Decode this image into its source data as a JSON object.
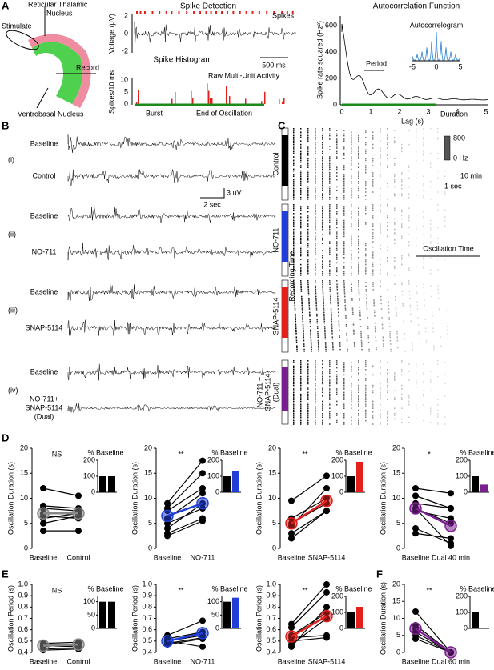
{
  "panel_labels": [
    "A",
    "B",
    "C",
    "D",
    "E",
    "F"
  ],
  "schematic": {
    "rtn": [
      "Reticular Thalamic",
      "Nucleus"
    ],
    "stimulate": "Stimulate",
    "record": "Record",
    "vb": "Ventrobasal Nucleus"
  },
  "spike_detection": {
    "title": "Spike Detection",
    "ylabel": "Voltage (μV)",
    "yticks": [
      "2",
      "0",
      "-2"
    ],
    "spikes": "Spikes",
    "raw": "Raw Multi-Unit Activity",
    "scale": "500 ms"
  },
  "histogram": {
    "title": "Spike Histogram",
    "ylabel": "Spikes/10 ms",
    "yticks": [
      "10",
      "5",
      "0"
    ],
    "burst": "Burst",
    "end": "End of Oscillation"
  },
  "autocorrelation": {
    "title": "Autocorrelation Function",
    "ylabel": "Spike rate squared (Hz²)",
    "xlabel": "Lag (s)",
    "yticks": [
      "0",
      "200",
      "400",
      "600"
    ],
    "xticks": [
      "0",
      "1",
      "2",
      "3",
      "4",
      "5"
    ],
    "period": "Period",
    "duration": "Duration",
    "inset_title": "Autocorrelogram",
    "inset_xticks": [
      "-5",
      "0",
      "5"
    ]
  },
  "traces": {
    "labels": [
      [
        "Baseline"
      ],
      [
        "Control"
      ],
      [
        "Baseline"
      ],
      [
        "NO-711"
      ],
      [
        "Baseline"
      ],
      [
        "SNAP-5114"
      ],
      [
        "Baseline"
      ],
      [
        "NO-711+",
        "SNAP-5114",
        "(Dual)"
      ]
    ],
    "label_colors": [
      "#000",
      "#000",
      "#000",
      "#1f3fd8",
      "#000",
      "#e3201b",
      "#000",
      "#7a1f8f"
    ],
    "groups": [
      "(i)",
      "(ii)",
      "(iii)",
      "(iv)"
    ],
    "scale_v": "3 uV",
    "scale_t": "2 sec"
  },
  "rasters": {
    "labels": [
      [
        "Control"
      ],
      [
        "NO-711"
      ],
      [
        "SNAP-5114"
      ],
      [
        "NO-711 +",
        "SNAP-5114",
        "(Dual)"
      ]
    ],
    "colors": [
      "#000",
      "#1f3fd8",
      "#e3201b",
      "#7a1f8f"
    ],
    "recording_time": "Recording Time",
    "oscillation_time": "Oscillation Time",
    "cbar": [
      "800",
      "0 Hz"
    ],
    "scale_t": "10 min",
    "scale_x": "1 sec"
  },
  "chart_data": [
    {
      "type": "paired",
      "ylabel": "Oscillation Duration (s)",
      "categories": [
        "Baseline",
        "Control"
      ],
      "category_colors": [
        "#000",
        "#000"
      ],
      "color": "#888888",
      "annotation": "NS",
      "ylim": [
        0,
        20
      ],
      "yticks": [
        0,
        5,
        10,
        15,
        20
      ],
      "series": [
        {
          "values": [
            12,
            10.5
          ]
        },
        {
          "values": [
            8.5,
            8
          ]
        },
        {
          "values": [
            8,
            7.5
          ]
        },
        {
          "values": [
            7,
            7
          ]
        },
        {
          "values": [
            6.5,
            6
          ]
        },
        {
          "values": [
            6,
            7
          ]
        },
        {
          "values": [
            5,
            6.5
          ]
        },
        {
          "values": [
            3.5,
            3.5
          ]
        }
      ],
      "mean": [
        7,
        7
      ],
      "inset": {
        "title": "% Baseline",
        "ylim": [
          0,
          200
        ],
        "yticks": [
          0,
          100,
          200
        ],
        "values": [
          100,
          100
        ],
        "colors": [
          "#000",
          "#000"
        ]
      }
    },
    {
      "type": "paired",
      "ylabel": "Oscillation Duration (s)",
      "categories": [
        "Baseline",
        "NO-711"
      ],
      "category_colors": [
        "#000",
        "#1f3fd8"
      ],
      "color": "#1f3fd8",
      "annotation": "**",
      "ylim": [
        0,
        20
      ],
      "yticks": [
        0,
        5,
        10,
        15,
        20
      ],
      "series": [
        {
          "values": [
            9,
            17.5
          ]
        },
        {
          "values": [
            8,
            15
          ]
        },
        {
          "values": [
            7.5,
            12
          ]
        },
        {
          "values": [
            6,
            11
          ]
        },
        {
          "values": [
            5,
            8
          ]
        },
        {
          "values": [
            4,
            9
          ]
        },
        {
          "values": [
            3,
            6
          ]
        },
        {
          "values": [
            2.5,
            5.5
          ]
        }
      ],
      "mean": [
        6.5,
        9
      ],
      "inset": {
        "title": "% Baseline",
        "ylim": [
          0,
          200
        ],
        "yticks": [
          0,
          100,
          200
        ],
        "values": [
          100,
          135
        ],
        "colors": [
          "#000",
          "#1f3fd8"
        ]
      }
    },
    {
      "type": "paired",
      "ylabel": "Oscillation Duration (s)",
      "categories": [
        "Baseline",
        "SNAP-5114"
      ],
      "category_colors": [
        "#000",
        "#e3201b"
      ],
      "color": "#e3201b",
      "annotation": "**",
      "ylim": [
        0,
        20
      ],
      "yticks": [
        0,
        5,
        10,
        15,
        20
      ],
      "series": [
        {
          "values": [
            9.5,
            14.5
          ]
        },
        {
          "values": [
            6,
            10
          ]
        },
        {
          "values": [
            5,
            9
          ]
        },
        {
          "values": [
            4.5,
            12
          ]
        },
        {
          "values": [
            3,
            7.5
          ]
        },
        {
          "values": [
            2,
            7.5
          ]
        }
      ],
      "mean": [
        5,
        9.5
      ],
      "inset": {
        "title": "% Baseline",
        "ylim": [
          0,
          200
        ],
        "yticks": [
          0,
          100,
          200
        ],
        "values": [
          100,
          190
        ],
        "colors": [
          "#000",
          "#e3201b"
        ]
      }
    },
    {
      "type": "paired",
      "ylabel": "Oscillation Duration (s)",
      "categories": [
        "Baseline",
        "Dual 40 min"
      ],
      "category_colors": [
        "#000",
        "#7a1f8f"
      ],
      "color": "#7a1f8f",
      "annotation": "*",
      "ylim": [
        0,
        20
      ],
      "yticks": [
        0,
        5,
        10,
        15,
        20
      ],
      "series": [
        {
          "values": [
            12,
            11
          ]
        },
        {
          "values": [
            10.5,
            8
          ]
        },
        {
          "values": [
            9,
            8
          ]
        },
        {
          "values": [
            8,
            5
          ]
        },
        {
          "values": [
            8,
            0.5
          ]
        },
        {
          "values": [
            7.5,
            6
          ]
        },
        {
          "values": [
            4,
            1
          ]
        },
        {
          "values": [
            3,
            2
          ]
        }
      ],
      "mean": [
        8,
        4.5
      ],
      "inset": {
        "title": "% Baseline",
        "ylim": [
          0,
          200
        ],
        "yticks": [
          0,
          100,
          200
        ],
        "values": [
          100,
          48
        ],
        "colors": [
          "#000",
          "#7a1f8f"
        ]
      }
    },
    {
      "type": "paired",
      "ylabel": "Oscillation Period (s)",
      "categories": [
        "Baseline",
        "Control"
      ],
      "category_colors": [
        "#000",
        "#000"
      ],
      "color": "#888888",
      "annotation": "NS",
      "ylim": [
        0.4,
        1
      ],
      "yticks": [
        0.4,
        0.5,
        0.6,
        0.7,
        0.8,
        0.9,
        {
          "value": 1,
          "label": "1.0"
        }
      ],
      "series": [
        {
          "values": [
            0.48,
            0.49
          ]
        },
        {
          "values": [
            0.47,
            0.46
          ]
        },
        {
          "values": [
            0.45,
            0.48
          ]
        },
        {
          "values": [
            0.43,
            0.44
          ]
        },
        {
          "values": [
            0.42,
            0.43
          ]
        },
        {
          "values": [
            0.46,
            0.45
          ]
        }
      ],
      "mean": [
        0.46,
        0.47
      ],
      "inset": {
        "title": "% Baseline",
        "ylim": [
          0,
          120
        ],
        "yticks": [
          0,
          50,
          100
        ],
        "values": [
          100,
          100
        ],
        "colors": [
          "#000",
          "#000"
        ]
      }
    },
    {
      "type": "paired",
      "ylabel": "Oscillation Period (s)",
      "categories": [
        "Baseline",
        "NO-711"
      ],
      "category_colors": [
        "#000",
        "#1f3fd8"
      ],
      "color": "#1f3fd8",
      "annotation": "**",
      "ylim": [
        0.4,
        1
      ],
      "yticks": [
        0.4,
        0.5,
        0.6,
        0.7,
        0.8,
        0.9,
        {
          "value": 1,
          "label": "1.0"
        }
      ],
      "series": [
        {
          "values": [
            0.55,
            0.68
          ]
        },
        {
          "values": [
            0.52,
            0.58
          ]
        },
        {
          "values": [
            0.5,
            0.55
          ]
        },
        {
          "values": [
            0.48,
            0.53
          ]
        },
        {
          "values": [
            0.47,
            0.52
          ]
        },
        {
          "values": [
            0.5,
            0.45
          ]
        }
      ],
      "mean": [
        0.5,
        0.57
      ],
      "inset": {
        "title": "% Baseline",
        "ylim": [
          0,
          120
        ],
        "yticks": [
          0,
          50,
          100
        ],
        "values": [
          100,
          115
        ],
        "colors": [
          "#000",
          "#1f3fd8"
        ]
      }
    },
    {
      "type": "paired",
      "ylabel": "Oscillation Period (s)",
      "categories": [
        "Baseline",
        "SNAP-5114"
      ],
      "category_colors": [
        "#000",
        "#e3201b"
      ],
      "color": "#e3201b",
      "annotation": "**",
      "ylim": [
        0.4,
        1
      ],
      "yticks": [
        0.4,
        0.5,
        0.6,
        0.7,
        0.8,
        0.9,
        {
          "value": 1,
          "label": "1.0"
        }
      ],
      "series": [
        {
          "values": [
            0.65,
            1
          ]
        },
        {
          "values": [
            0.62,
            0.93
          ]
        },
        {
          "values": [
            0.55,
            0.75
          ]
        },
        {
          "values": [
            0.53,
            0.55
          ]
        },
        {
          "values": [
            0.5,
            0.53
          ]
        },
        {
          "values": [
            0.47,
            0.7
          ]
        },
        {
          "values": [
            0.45,
            0.8
          ]
        }
      ],
      "mean": [
        0.54,
        0.72
      ],
      "inset": {
        "title": "% Baseline",
        "ylim": [
          0,
          200
        ],
        "yticks": [
          0,
          100,
          200
        ],
        "values": [
          100,
          135
        ],
        "colors": [
          "#000",
          "#e3201b"
        ]
      }
    },
    {
      "type": "paired",
      "ylabel": "Oscillation Duration (s)",
      "categories": [
        "Baseline",
        "Dual 60 min"
      ],
      "category_colors": [
        "#000",
        "#7a1f8f"
      ],
      "color": "#7a1f8f",
      "annotation": "**",
      "ylim": [
        0,
        20
      ],
      "yticks": [
        0,
        5,
        10,
        15,
        20
      ],
      "series": [
        {
          "values": [
            12,
            0
          ]
        },
        {
          "values": [
            8,
            0
          ]
        },
        {
          "values": [
            7,
            0
          ]
        },
        {
          "values": [
            6,
            0
          ]
        },
        {
          "values": [
            5,
            0
          ]
        },
        {
          "values": [
            4,
            0
          ]
        }
      ],
      "mean": [
        7,
        0
      ],
      "inset": {
        "title": "% Baseline",
        "ylim": [
          0,
          200
        ],
        "yticks": [
          0,
          100,
          200
        ],
        "values": [
          100,
          0
        ],
        "colors": [
          "#000",
          "#7a1f8f"
        ]
      }
    }
  ]
}
